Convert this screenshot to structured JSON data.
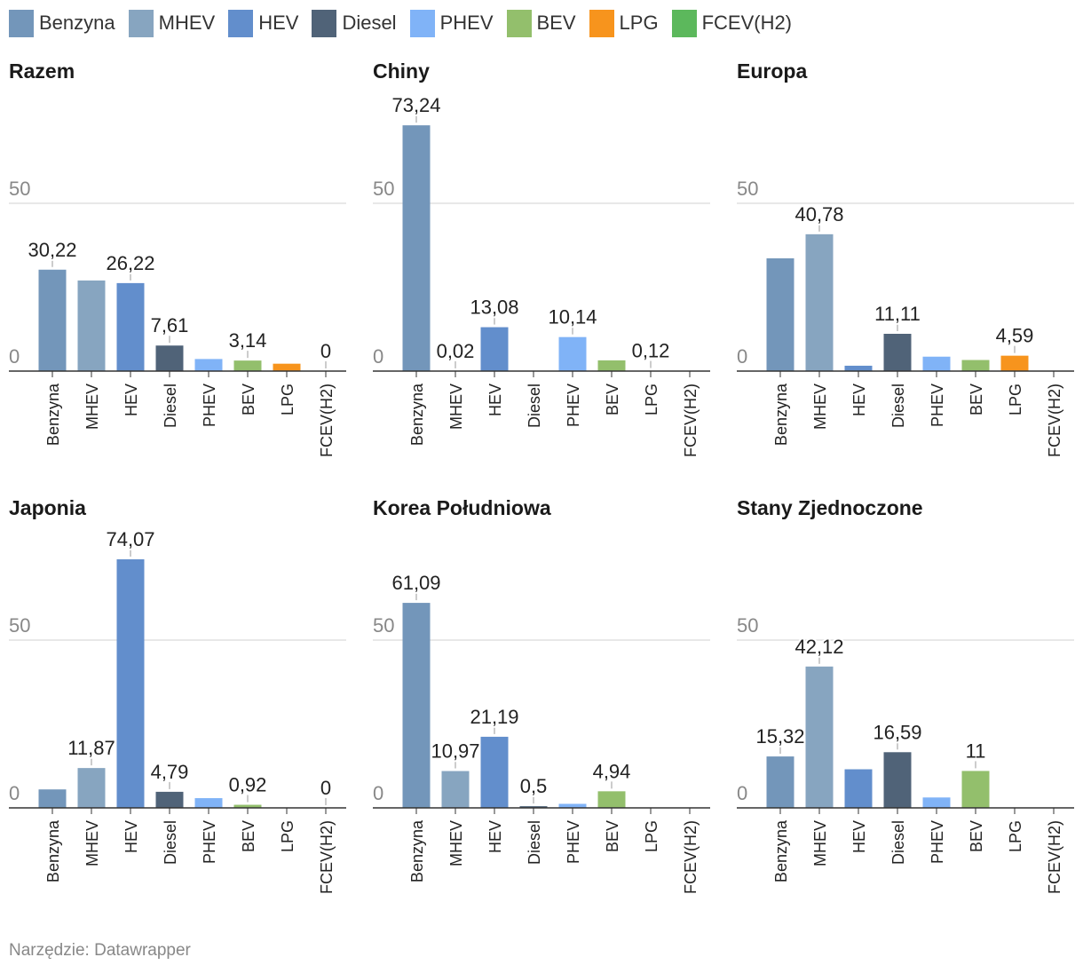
{
  "legend": [
    {
      "label": "Benzyna",
      "color": "#7396ba"
    },
    {
      "label": "MHEV",
      "color": "#87a5c0"
    },
    {
      "label": "HEV",
      "color": "#628ecc"
    },
    {
      "label": "Diesel",
      "color": "#506378"
    },
    {
      "label": "PHEV",
      "color": "#80b3f7"
    },
    {
      "label": "BEV",
      "color": "#93bf6c"
    },
    {
      "label": "LPG",
      "color": "#f7941d"
    },
    {
      "label": "FCEV(H2)",
      "color": "#5cb85c"
    }
  ],
  "chart_data": [
    {
      "type": "bar",
      "title": "Razem",
      "categories": [
        "Benzyna",
        "MHEV",
        "HEV",
        "Diesel",
        "PHEV",
        "BEV",
        "LPG",
        "FCEV(H2)"
      ],
      "values": [
        30.22,
        27.0,
        26.22,
        7.61,
        3.6,
        3.14,
        2.2,
        0
      ],
      "labels": [
        "30,22",
        "",
        "26,22",
        "7,61",
        "",
        "3,14",
        "",
        "0"
      ],
      "y_ticks": [
        "0",
        "50"
      ],
      "ylim": [
        0,
        75
      ],
      "grid": true
    },
    {
      "type": "bar",
      "title": "Chiny",
      "categories": [
        "Benzyna",
        "MHEV",
        "HEV",
        "Diesel",
        "PHEV",
        "BEV",
        "LPG",
        "FCEV(H2)"
      ],
      "values": [
        73.24,
        0.02,
        13.08,
        0,
        10.14,
        3.2,
        0.12,
        0
      ],
      "labels": [
        "73,24",
        "0,02",
        "13,08",
        "",
        "10,14",
        "",
        "0,12",
        ""
      ],
      "y_ticks": [
        "0",
        "50"
      ],
      "ylim": [
        0,
        75
      ],
      "grid": true
    },
    {
      "type": "bar",
      "title": "Europa",
      "categories": [
        "Benzyna",
        "MHEV",
        "HEV",
        "Diesel",
        "PHEV",
        "BEV",
        "LPG",
        "FCEV(H2)"
      ],
      "values": [
        33.6,
        40.78,
        1.6,
        11.11,
        4.3,
        3.3,
        4.59,
        0
      ],
      "labels": [
        "",
        "40,78",
        "",
        "11,11",
        "",
        "",
        "4,59",
        ""
      ],
      "y_ticks": [
        "0",
        "50"
      ],
      "ylim": [
        0,
        75
      ],
      "grid": true
    },
    {
      "type": "bar",
      "title": "Japonia",
      "categories": [
        "Benzyna",
        "MHEV",
        "HEV",
        "Diesel",
        "PHEV",
        "BEV",
        "LPG",
        "FCEV(H2)"
      ],
      "values": [
        5.5,
        11.87,
        74.07,
        4.79,
        2.9,
        0.92,
        0,
        0
      ],
      "labels": [
        "",
        "11,87",
        "74,07",
        "4,79",
        "",
        "0,92",
        "",
        "0"
      ],
      "y_ticks": [
        "0",
        "50"
      ],
      "ylim": [
        0,
        75
      ],
      "grid": true
    },
    {
      "type": "bar",
      "title": "Korea Południowa",
      "categories": [
        "Benzyna",
        "MHEV",
        "HEV",
        "Diesel",
        "PHEV",
        "BEV",
        "LPG",
        "FCEV(H2)"
      ],
      "values": [
        61.09,
        10.97,
        21.19,
        0.5,
        1.2,
        4.94,
        0,
        0
      ],
      "labels": [
        "61,09",
        "10,97",
        "21,19",
        "0,5",
        "",
        "4,94",
        "",
        ""
      ],
      "y_ticks": [
        "0",
        "50"
      ],
      "ylim": [
        0,
        75
      ],
      "grid": true
    },
    {
      "type": "bar",
      "title": "Stany Zjednoczone",
      "categories": [
        "Benzyna",
        "MHEV",
        "HEV",
        "Diesel",
        "PHEV",
        "BEV",
        "LPG",
        "FCEV(H2)"
      ],
      "values": [
        15.32,
        42.12,
        11.5,
        16.59,
        3.1,
        11,
        0,
        0
      ],
      "labels": [
        "15,32",
        "42,12",
        "",
        "16,59",
        "",
        "11",
        "",
        ""
      ],
      "y_ticks": [
        "0",
        "50"
      ],
      "ylim": [
        0,
        75
      ],
      "grid": true
    }
  ],
  "footer": "Narzędzie: Datawrapper"
}
